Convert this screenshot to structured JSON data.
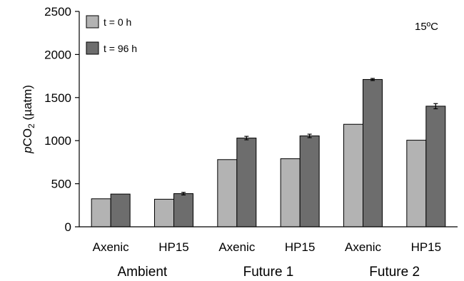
{
  "chart_data": {
    "type": "bar",
    "ylabel": "pCO2 (µatm)",
    "ylabel_parts": {
      "italic": "p",
      "main": "CO",
      "sub": "2",
      "unit": " (µatm)"
    },
    "annotation": "15ºC",
    "ylim": [
      0,
      2500
    ],
    "yticks": [
      "0",
      "500",
      "1000",
      "1500",
      "2000",
      "2500"
    ],
    "grid": false,
    "legend_position": "top-left",
    "categories": [
      "Axenic",
      "HP15",
      "Axenic",
      "HP15",
      "Axenic",
      "HP15"
    ],
    "groups": [
      {
        "label": "Ambient",
        "span": [
          0,
          1
        ]
      },
      {
        "label": "Future 1",
        "span": [
          2,
          3
        ]
      },
      {
        "label": "Future 2",
        "span": [
          4,
          5
        ]
      }
    ],
    "series": [
      {
        "name": "t = 0 h",
        "color": "#b3b3b3",
        "values": [
          325,
          320,
          780,
          790,
          1190,
          1005
        ],
        "errors": [
          0,
          0,
          0,
          0,
          0,
          0
        ]
      },
      {
        "name": "t = 96 h",
        "color": "#6d6d6d",
        "values": [
          380,
          385,
          1030,
          1055,
          1710,
          1400
        ],
        "errors": [
          0,
          15,
          20,
          20,
          12,
          30
        ]
      }
    ]
  }
}
